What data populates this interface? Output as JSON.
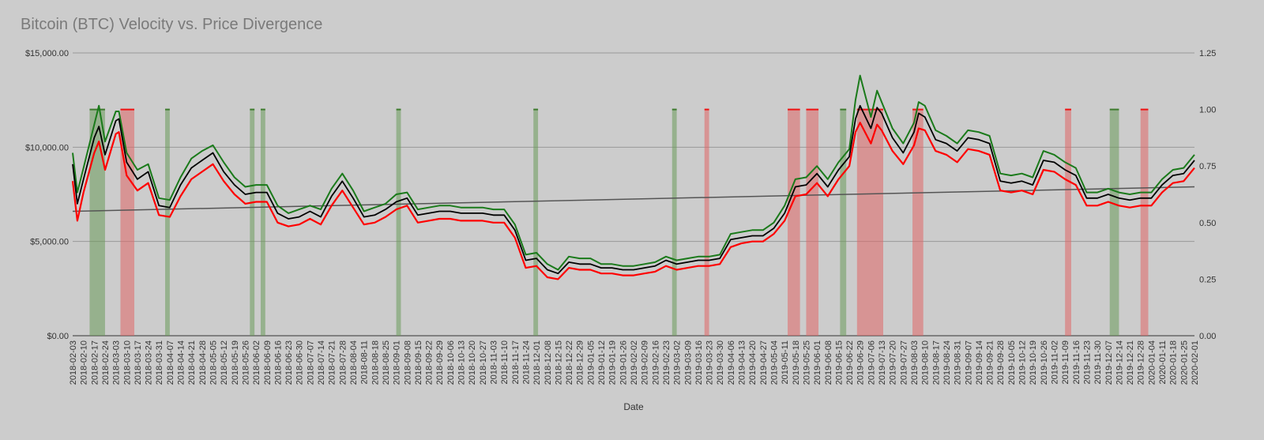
{
  "chart_data": {
    "type": "line",
    "title": "Bitcoin (BTC) Velocity vs. Price Divergence",
    "xlabel": "Date",
    "ylabel_left": "",
    "ylabel_right": "",
    "x_range": [
      "2018-02-03",
      "2020-02-01"
    ],
    "y_left_lim": [
      0,
      15000
    ],
    "y_right_lim": [
      0,
      1.25
    ],
    "y_left_ticks": [
      "$0.00",
      "$5,000.00",
      "$10,000.00",
      "$15,000.00"
    ],
    "y_left_tick_values": [
      0,
      5000,
      10000,
      15000
    ],
    "y_right_ticks": [
      "0.00",
      "0.25",
      "0.50",
      "0.75",
      "1.00",
      "1.25"
    ],
    "y_right_tick_values": [
      0,
      0.25,
      0.5,
      0.75,
      1.0,
      1.25
    ],
    "x_ticks": [
      "2018-02-03",
      "2018-02-10",
      "2018-02-17",
      "2018-02-24",
      "2018-03-03",
      "2018-03-10",
      "2018-03-17",
      "2018-03-24",
      "2018-03-31",
      "2018-04-07",
      "2018-04-14",
      "2018-04-21",
      "2018-04-28",
      "2018-05-05",
      "2018-05-12",
      "2018-05-19",
      "2018-05-26",
      "2018-06-02",
      "2018-06-09",
      "2018-06-16",
      "2018-06-23",
      "2018-06-30",
      "2018-07-07",
      "2018-07-14",
      "2018-07-21",
      "2018-07-28",
      "2018-08-04",
      "2018-08-11",
      "2018-08-18",
      "2018-08-25",
      "2018-09-01",
      "2018-09-08",
      "2018-09-15",
      "2018-09-22",
      "2018-09-29",
      "2018-10-06",
      "2018-10-13",
      "2018-10-20",
      "2018-10-27",
      "2018-11-03",
      "2018-11-10",
      "2018-11-17",
      "2018-11-24",
      "2018-12-01",
      "2018-12-08",
      "2018-12-15",
      "2018-12-22",
      "2018-12-29",
      "2019-01-05",
      "2019-01-12",
      "2019-01-19",
      "2019-01-26",
      "2019-02-02",
      "2019-02-09",
      "2019-02-16",
      "2019-02-23",
      "2019-03-02",
      "2019-03-09",
      "2019-03-16",
      "2019-03-23",
      "2019-03-30",
      "2019-04-06",
      "2019-04-13",
      "2019-04-20",
      "2019-04-27",
      "2019-05-04",
      "2019-05-11",
      "2019-05-18",
      "2019-05-25",
      "2019-06-01",
      "2019-06-08",
      "2019-06-15",
      "2019-06-22",
      "2019-06-29",
      "2019-07-06",
      "2019-07-13",
      "2019-07-20",
      "2019-07-27",
      "2019-08-03",
      "2019-08-10",
      "2019-08-17",
      "2019-08-24",
      "2019-08-31",
      "2019-09-07",
      "2019-09-14",
      "2019-09-21",
      "2019-09-28",
      "2019-10-05",
      "2019-10-12",
      "2019-10-19",
      "2019-10-26",
      "2019-11-02",
      "2019-11-09",
      "2019-11-16",
      "2019-11-23",
      "2019-11-30",
      "2019-12-07",
      "2019-12-14",
      "2019-12-21",
      "2019-12-28",
      "2020-01-04",
      "2020-01-11",
      "2020-01-18",
      "2020-01-25",
      "2020-02-01"
    ],
    "price_series": {
      "x": [
        "2018-02-03",
        "2018-02-06",
        "2018-02-10",
        "2018-02-17",
        "2018-02-20",
        "2018-02-24",
        "2018-03-03",
        "2018-03-05",
        "2018-03-10",
        "2018-03-17",
        "2018-03-24",
        "2018-03-31",
        "2018-04-07",
        "2018-04-14",
        "2018-04-21",
        "2018-04-28",
        "2018-05-05",
        "2018-05-12",
        "2018-05-19",
        "2018-05-26",
        "2018-06-02",
        "2018-06-09",
        "2018-06-16",
        "2018-06-23",
        "2018-06-30",
        "2018-07-07",
        "2018-07-14",
        "2018-07-21",
        "2018-07-28",
        "2018-08-04",
        "2018-08-11",
        "2018-08-18",
        "2018-08-25",
        "2018-09-01",
        "2018-09-08",
        "2018-09-15",
        "2018-09-22",
        "2018-09-29",
        "2018-10-06",
        "2018-10-13",
        "2018-10-20",
        "2018-10-27",
        "2018-11-03",
        "2018-11-10",
        "2018-11-17",
        "2018-11-24",
        "2018-12-01",
        "2018-12-08",
        "2018-12-15",
        "2018-12-22",
        "2018-12-29",
        "2019-01-05",
        "2019-01-12",
        "2019-01-19",
        "2019-01-26",
        "2019-02-02",
        "2019-02-09",
        "2019-02-16",
        "2019-02-23",
        "2019-03-02",
        "2019-03-09",
        "2019-03-16",
        "2019-03-23",
        "2019-03-30",
        "2019-04-06",
        "2019-04-13",
        "2019-04-20",
        "2019-04-27",
        "2019-05-04",
        "2019-05-11",
        "2019-05-18",
        "2019-05-25",
        "2019-06-01",
        "2019-06-08",
        "2019-06-15",
        "2019-06-22",
        "2019-06-26",
        "2019-06-29",
        "2019-07-06",
        "2019-07-10",
        "2019-07-13",
        "2019-07-20",
        "2019-07-27",
        "2019-08-03",
        "2019-08-06",
        "2019-08-10",
        "2019-08-17",
        "2019-08-24",
        "2019-08-31",
        "2019-09-07",
        "2019-09-14",
        "2019-09-21",
        "2019-09-28",
        "2019-10-05",
        "2019-10-12",
        "2019-10-19",
        "2019-10-26",
        "2019-11-02",
        "2019-11-09",
        "2019-11-16",
        "2019-11-23",
        "2019-11-30",
        "2019-12-07",
        "2019-12-14",
        "2019-12-21",
        "2019-12-28",
        "2020-01-04",
        "2020-01-11",
        "2020-01-18",
        "2020-01-25",
        "2020-02-01"
      ],
      "y": [
        9100,
        7000,
        8300,
        10500,
        11100,
        9600,
        11400,
        11500,
        9200,
        8300,
        8700,
        6900,
        6800,
        8000,
        8900,
        9300,
        9700,
        8700,
        8000,
        7500,
        7600,
        7600,
        6500,
        6200,
        6300,
        6600,
        6300,
        7400,
        8200,
        7300,
        6300,
        6400,
        6700,
        7100,
        7300,
        6400,
        6500,
        6600,
        6600,
        6500,
        6500,
        6500,
        6400,
        6400,
        5600,
        4000,
        4100,
        3500,
        3300,
        3900,
        3800,
        3800,
        3600,
        3600,
        3500,
        3500,
        3600,
        3700,
        4000,
        3800,
        3900,
        4000,
        4000,
        4100,
        5100,
        5200,
        5300,
        5300,
        5700,
        6500,
        7900,
        8000,
        8600,
        7900,
        8800,
        9500,
        11500,
        12200,
        11000,
        12100,
        11800,
        10500,
        9700,
        10800,
        11800,
        11600,
        10400,
        10200,
        9800,
        10500,
        10400,
        10200,
        8200,
        8100,
        8200,
        8000,
        9300,
        9200,
        8800,
        8500,
        7300,
        7300,
        7500,
        7300,
        7200,
        7300,
        7300,
        8000,
        8500,
        8600,
        9300
      ]
    },
    "lower_band_series": {
      "x": [
        "2018-02-03",
        "2018-02-06",
        "2018-02-10",
        "2018-02-17",
        "2018-02-20",
        "2018-02-24",
        "2018-03-03",
        "2018-03-05",
        "2018-03-10",
        "2018-03-17",
        "2018-03-24",
        "2018-03-31",
        "2018-04-07",
        "2018-04-14",
        "2018-04-21",
        "2018-04-28",
        "2018-05-05",
        "2018-05-12",
        "2018-05-19",
        "2018-05-26",
        "2018-06-02",
        "2018-06-09",
        "2018-06-16",
        "2018-06-23",
        "2018-06-30",
        "2018-07-07",
        "2018-07-14",
        "2018-07-21",
        "2018-07-28",
        "2018-08-04",
        "2018-08-11",
        "2018-08-18",
        "2018-08-25",
        "2018-09-01",
        "2018-09-08",
        "2018-09-15",
        "2018-09-22",
        "2018-09-29",
        "2018-10-06",
        "2018-10-13",
        "2018-10-20",
        "2018-10-27",
        "2018-11-03",
        "2018-11-10",
        "2018-11-17",
        "2018-11-24",
        "2018-12-01",
        "2018-12-08",
        "2018-12-15",
        "2018-12-22",
        "2018-12-29",
        "2019-01-05",
        "2019-01-12",
        "2019-01-19",
        "2019-01-26",
        "2019-02-02",
        "2019-02-09",
        "2019-02-16",
        "2019-02-23",
        "2019-03-02",
        "2019-03-09",
        "2019-03-16",
        "2019-03-23",
        "2019-03-30",
        "2019-04-06",
        "2019-04-13",
        "2019-04-20",
        "2019-04-27",
        "2019-05-04",
        "2019-05-11",
        "2019-05-18",
        "2019-05-25",
        "2019-06-01",
        "2019-06-08",
        "2019-06-15",
        "2019-06-22",
        "2019-06-26",
        "2019-06-29",
        "2019-07-06",
        "2019-07-10",
        "2019-07-13",
        "2019-07-20",
        "2019-07-27",
        "2019-08-03",
        "2019-08-06",
        "2019-08-10",
        "2019-08-17",
        "2019-08-24",
        "2019-08-31",
        "2019-09-07",
        "2019-09-14",
        "2019-09-21",
        "2019-09-28",
        "2019-10-05",
        "2019-10-12",
        "2019-10-19",
        "2019-10-26",
        "2019-11-02",
        "2019-11-09",
        "2019-11-16",
        "2019-11-23",
        "2019-11-30",
        "2019-12-07",
        "2019-12-14",
        "2019-12-21",
        "2019-12-28",
        "2020-01-04",
        "2020-01-11",
        "2020-01-18",
        "2020-01-25",
        "2020-02-01"
      ],
      "y": [
        8200,
        6100,
        7600,
        9700,
        10300,
        8800,
        10700,
        10800,
        8500,
        7700,
        8100,
        6400,
        6300,
        7400,
        8300,
        8700,
        9100,
        8200,
        7500,
        7000,
        7100,
        7100,
        6000,
        5800,
        5900,
        6200,
        5900,
        6900,
        7700,
        6800,
        5900,
        6000,
        6300,
        6700,
        6900,
        6000,
        6100,
        6200,
        6200,
        6100,
        6100,
        6100,
        6000,
        6000,
        5200,
        3600,
        3700,
        3100,
        3000,
        3600,
        3500,
        3500,
        3300,
        3300,
        3200,
        3200,
        3300,
        3400,
        3700,
        3500,
        3600,
        3700,
        3700,
        3800,
        4700,
        4900,
        5000,
        5000,
        5400,
        6100,
        7400,
        7500,
        8100,
        7400,
        8300,
        9000,
        10800,
        11300,
        10200,
        11200,
        10900,
        9800,
        9100,
        10100,
        11000,
        10900,
        9800,
        9600,
        9200,
        9900,
        9800,
        9600,
        7700,
        7600,
        7700,
        7500,
        8800,
        8700,
        8300,
        8000,
        6900,
        6900,
        7100,
        6900,
        6800,
        6900,
        6900,
        7600,
        8100,
        8200,
        8900
      ]
    },
    "upper_band_series": {
      "x": [
        "2018-02-03",
        "2018-02-06",
        "2018-02-10",
        "2018-02-17",
        "2018-02-20",
        "2018-02-24",
        "2018-03-03",
        "2018-03-05",
        "2018-03-10",
        "2018-03-17",
        "2018-03-24",
        "2018-03-31",
        "2018-04-07",
        "2018-04-14",
        "2018-04-21",
        "2018-04-28",
        "2018-05-05",
        "2018-05-12",
        "2018-05-19",
        "2018-05-26",
        "2018-06-02",
        "2018-06-09",
        "2018-06-16",
        "2018-06-23",
        "2018-06-30",
        "2018-07-07",
        "2018-07-14",
        "2018-07-21",
        "2018-07-28",
        "2018-08-04",
        "2018-08-11",
        "2018-08-18",
        "2018-08-25",
        "2018-09-01",
        "2018-09-08",
        "2018-09-15",
        "2018-09-22",
        "2018-09-29",
        "2018-10-06",
        "2018-10-13",
        "2018-10-20",
        "2018-10-27",
        "2018-11-03",
        "2018-11-10",
        "2018-11-17",
        "2018-11-24",
        "2018-12-01",
        "2018-12-08",
        "2018-12-15",
        "2018-12-22",
        "2018-12-29",
        "2019-01-05",
        "2019-01-12",
        "2019-01-19",
        "2019-01-26",
        "2019-02-02",
        "2019-02-09",
        "2019-02-16",
        "2019-02-23",
        "2019-03-02",
        "2019-03-09",
        "2019-03-16",
        "2019-03-23",
        "2019-03-30",
        "2019-04-06",
        "2019-04-13",
        "2019-04-20",
        "2019-04-27",
        "2019-05-04",
        "2019-05-11",
        "2019-05-18",
        "2019-05-25",
        "2019-06-01",
        "2019-06-08",
        "2019-06-15",
        "2019-06-22",
        "2019-06-26",
        "2019-06-29",
        "2019-07-06",
        "2019-07-10",
        "2019-07-13",
        "2019-07-20",
        "2019-07-27",
        "2019-08-03",
        "2019-08-06",
        "2019-08-10",
        "2019-08-17",
        "2019-08-24",
        "2019-08-31",
        "2019-09-07",
        "2019-09-14",
        "2019-09-21",
        "2019-09-28",
        "2019-10-05",
        "2019-10-12",
        "2019-10-19",
        "2019-10-26",
        "2019-11-02",
        "2019-11-09",
        "2019-11-16",
        "2019-11-23",
        "2019-11-30",
        "2019-12-07",
        "2019-12-14",
        "2019-12-21",
        "2019-12-28",
        "2020-01-04",
        "2020-01-11",
        "2020-01-18",
        "2020-01-25",
        "2020-02-01"
      ],
      "y": [
        9700,
        7600,
        8900,
        11200,
        12200,
        10300,
        11900,
        11900,
        9700,
        8800,
        9100,
        7300,
        7200,
        8400,
        9400,
        9800,
        10100,
        9200,
        8400,
        7900,
        8000,
        8000,
        6900,
        6500,
        6700,
        6900,
        6700,
        7800,
        8600,
        7700,
        6600,
        6800,
        7000,
        7500,
        7600,
        6700,
        6800,
        6900,
        6900,
        6800,
        6800,
        6800,
        6700,
        6700,
        5900,
        4300,
        4400,
        3800,
        3500,
        4200,
        4100,
        4100,
        3800,
        3800,
        3700,
        3700,
        3800,
        3900,
        4200,
        4000,
        4100,
        4200,
        4200,
        4300,
        5400,
        5500,
        5600,
        5600,
        6000,
        6900,
        8300,
        8400,
        9000,
        8300,
        9200,
        9900,
        12500,
        13800,
        11600,
        13000,
        12400,
        11000,
        10200,
        11300,
        12400,
        12200,
        10900,
        10600,
        10200,
        10900,
        10800,
        10600,
        8600,
        8500,
        8600,
        8400,
        9800,
        9600,
        9200,
        8900,
        7600,
        7600,
        7800,
        7600,
        7500,
        7600,
        7600,
        8300,
        8800,
        8900,
        9600
      ]
    },
    "trend_line": {
      "x": [
        "2018-02-03",
        "2020-02-01"
      ],
      "y": [
        6600,
        7900
      ]
    },
    "signal_spans": [
      {
        "start": "2018-02-14",
        "end": "2018-02-24",
        "side": "green",
        "high": 1.0
      },
      {
        "start": "2018-03-06",
        "end": "2018-03-15",
        "side": "red",
        "high": 1.0
      },
      {
        "start": "2018-04-04",
        "end": "2018-04-07",
        "side": "green",
        "high": 1.0
      },
      {
        "start": "2018-05-29",
        "end": "2018-06-01",
        "side": "green",
        "high": 1.0
      },
      {
        "start": "2018-06-05",
        "end": "2018-06-08",
        "side": "green",
        "high": 1.0
      },
      {
        "start": "2018-09-01",
        "end": "2018-09-04",
        "side": "green",
        "high": 1.0
      },
      {
        "start": "2018-11-29",
        "end": "2018-12-02",
        "side": "green",
        "high": 1.0
      },
      {
        "start": "2019-02-27",
        "end": "2019-03-02",
        "side": "green",
        "high": 1.0
      },
      {
        "start": "2019-03-20",
        "end": "2019-03-23",
        "side": "red",
        "high": 1.0
      },
      {
        "start": "2019-05-13",
        "end": "2019-05-21",
        "side": "red",
        "high": 1.0
      },
      {
        "start": "2019-05-25",
        "end": "2019-06-02",
        "side": "red",
        "high": 1.0
      },
      {
        "start": "2019-06-16",
        "end": "2019-06-20",
        "side": "green",
        "high": 1.0
      },
      {
        "start": "2019-06-27",
        "end": "2019-07-14",
        "side": "red",
        "high": 1.0
      },
      {
        "start": "2019-08-02",
        "end": "2019-08-09",
        "side": "red",
        "high": 1.0
      },
      {
        "start": "2019-11-09",
        "end": "2019-11-13",
        "side": "red",
        "high": 1.0
      },
      {
        "start": "2019-12-08",
        "end": "2019-12-14",
        "side": "green",
        "high": 1.0
      },
      {
        "start": "2019-12-28",
        "end": "2020-01-02",
        "side": "red",
        "high": 1.0
      }
    ],
    "grid": true,
    "legend": "none"
  }
}
